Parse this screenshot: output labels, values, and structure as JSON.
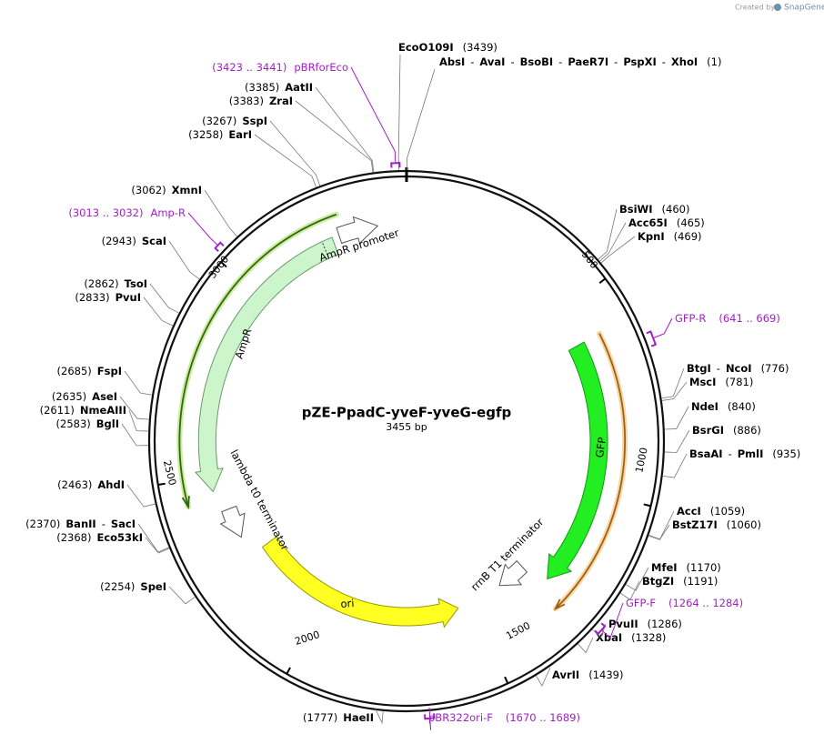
{
  "header": {
    "created_by": "Created by",
    "brand": "SnapGene"
  },
  "plasmid": {
    "name": "pZE-PpadC-yveF-yveG-egfp",
    "length": "3455 bp"
  },
  "separator": "-",
  "ruler": [
    500,
    1000,
    1500,
    2000,
    2500,
    3000
  ],
  "features": [
    "AmpR promoter",
    "AmpR",
    "lambda t0 terminator",
    "ori",
    "rrnB T1 terminator",
    "GFP"
  ],
  "sites": [
    {
      "enzymes": [
        "EcoO109I"
      ],
      "position": "(3439)"
    },
    {
      "enzymes": [
        "AbsI",
        "AvaI",
        "BsoBI",
        "PaeR7I",
        "PspXI",
        "XhoI"
      ],
      "position": "(1)"
    },
    {
      "enzymes": [
        "AatII"
      ],
      "position": "(3385)"
    },
    {
      "enzymes": [
        "ZraI"
      ],
      "position": "(3383)"
    },
    {
      "enzymes": [
        "SspI"
      ],
      "position": "(3267)"
    },
    {
      "enzymes": [
        "EarI"
      ],
      "position": "(3258)"
    },
    {
      "enzymes": [
        "XmnI"
      ],
      "position": "(3062)"
    },
    {
      "enzymes": [
        "ScaI"
      ],
      "position": "(2943)"
    },
    {
      "enzymes": [
        "TsoI"
      ],
      "position": "(2862)"
    },
    {
      "enzymes": [
        "PvuI"
      ],
      "position": "(2833)"
    },
    {
      "enzymes": [
        "FspI"
      ],
      "position": "(2685)"
    },
    {
      "enzymes": [
        "AseI"
      ],
      "position": "(2635)"
    },
    {
      "enzymes": [
        "NmeAIII"
      ],
      "position": "(2611)"
    },
    {
      "enzymes": [
        "BglI"
      ],
      "position": "(2583)"
    },
    {
      "enzymes": [
        "AhdI"
      ],
      "position": "(2463)"
    },
    {
      "enzymes": [
        "BanII",
        "SacI"
      ],
      "position": "(2370)"
    },
    {
      "enzymes": [
        "Eco53kI"
      ],
      "position": "(2368)"
    },
    {
      "enzymes": [
        "SpeI"
      ],
      "position": "(2254)"
    },
    {
      "enzymes": [
        "HaeII"
      ],
      "position": "(1777)"
    },
    {
      "enzymes": [
        "AvrII"
      ],
      "position": "(1439)"
    },
    {
      "enzymes": [
        "XbaI"
      ],
      "position": "(1328)"
    },
    {
      "enzymes": [
        "PvuII"
      ],
      "position": "(1286)"
    },
    {
      "enzymes": [
        "BtgZI"
      ],
      "position": "(1191)"
    },
    {
      "enzymes": [
        "MfeI"
      ],
      "position": "(1170)"
    },
    {
      "enzymes": [
        "BstZ17I"
      ],
      "position": "(1060)"
    },
    {
      "enzymes": [
        "AccI"
      ],
      "position": "(1059)"
    },
    {
      "enzymes": [
        "BsaAI",
        "PmlI"
      ],
      "position": "(935)"
    },
    {
      "enzymes": [
        "BsrGI"
      ],
      "position": "(886)"
    },
    {
      "enzymes": [
        "NdeI"
      ],
      "position": "(840)"
    },
    {
      "enzymes": [
        "MscI"
      ],
      "position": "(781)"
    },
    {
      "enzymes": [
        "BtgI",
        "NcoI"
      ],
      "position": "(776)"
    },
    {
      "enzymes": [
        "KpnI"
      ],
      "position": "(469)"
    },
    {
      "enzymes": [
        "Acc65I"
      ],
      "position": "(465)"
    },
    {
      "enzymes": [
        "BsiWI"
      ],
      "position": "(460)"
    }
  ],
  "primers": [
    {
      "name": "pBRforEco",
      "range": "(3423 .. 3441)"
    },
    {
      "name": "Amp-R",
      "range": "(3013 .. 3032)"
    },
    {
      "name": "GFP-R",
      "range": "(641 .. 669)"
    },
    {
      "name": "GFP-F",
      "range": "(1264 .. 1284)"
    },
    {
      "name": "pBR322ori-F",
      "range": "(1670 .. 1689)"
    }
  ]
}
